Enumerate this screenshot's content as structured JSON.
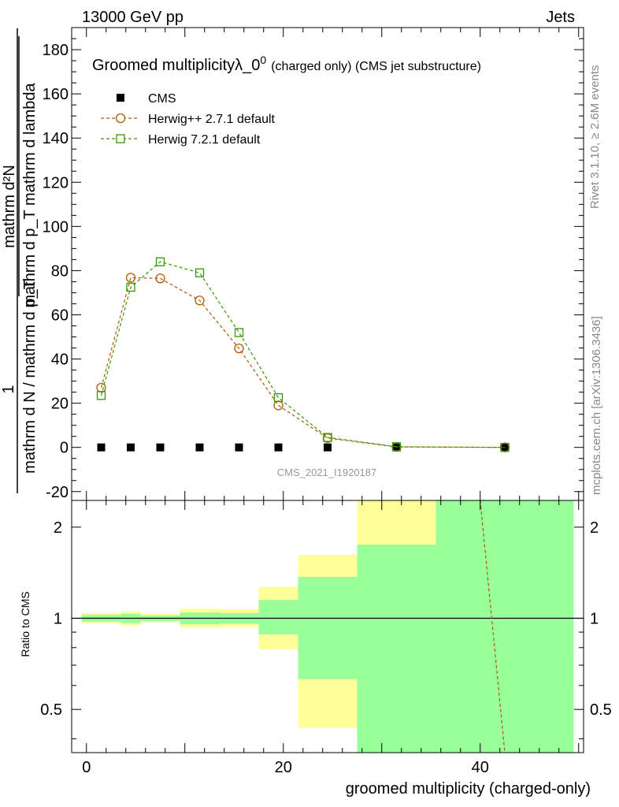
{
  "header": {
    "left": "13000 GeV pp",
    "right": "Jets"
  },
  "side_labels": {
    "rivet": "Rivet 3.1.10, ≥ 2.6M events",
    "mcplots": "mcplots.cern.ch [arXiv:1306.3436]"
  },
  "chart_data": [
    {
      "type": "line",
      "title": "Groomed multiplicityλ_0",
      "title_sup": "0",
      "title_suffix": "(charged only) (CMS jet substructure)",
      "ylabel_numerator": "mathrm d²N",
      "ylabel_upper": "mathrm d p_T mathrm d lambda",
      "ylabel_one": "1",
      "ylabel_lower": "mathrm d N / mathrm d p_T",
      "watermark": "CMS_2021_I1920187",
      "xlim": [
        -1.5,
        50.5
      ],
      "ylim": [
        -24,
        190
      ],
      "yticks": [
        -20,
        0,
        20,
        40,
        60,
        80,
        100,
        120,
        140,
        160,
        180
      ],
      "series": [
        {
          "name": "CMS",
          "marker": "filled-square",
          "color": "#000000",
          "x": [
            1.5,
            4.5,
            7.5,
            11.5,
            15.5,
            19.5,
            24.5,
            31.5,
            42.5
          ],
          "y": [
            0,
            0,
            0,
            0,
            0,
            0,
            0,
            0,
            0
          ]
        },
        {
          "name": "Herwig++ 2.7.1 default",
          "marker": "open-circle",
          "color": "#b35900",
          "x": [
            1.5,
            4.5,
            7.5,
            11.5,
            15.5,
            19.5,
            24.5,
            31.5,
            42.5
          ],
          "y": [
            27,
            76.8,
            76.5,
            66.5,
            44.8,
            19,
            4.2,
            0.2,
            0
          ]
        },
        {
          "name": "Herwig 7.2.1 default",
          "marker": "open-square",
          "color": "#339900",
          "x": [
            1.5,
            4.5,
            7.5,
            11.5,
            15.5,
            19.5,
            24.5,
            31.5,
            42.5
          ],
          "y": [
            23.5,
            72.5,
            84,
            79,
            52,
            22.5,
            4.5,
            0.3,
            0
          ]
        }
      ]
    },
    {
      "type": "area",
      "ylabel": "Ratio to CMS",
      "xlabel": "groomed multiplicity (charged-only)",
      "xlim": [
        -1.5,
        50.5
      ],
      "ylim": [
        0.36,
        2.45
      ],
      "ylog": true,
      "xticks": [
        0,
        20,
        40
      ],
      "yticks": [
        0.5,
        1,
        2
      ],
      "bands": {
        "edges": [
          -0.5,
          3.5,
          5.5,
          9.5,
          13.5,
          17.5,
          21.5,
          27.5,
          35.5,
          49.5
        ],
        "yellow": [
          [
            0.965,
            1.04
          ],
          [
            0.95,
            1.055
          ],
          [
            0.97,
            1.035
          ],
          [
            0.93,
            1.075
          ],
          [
            0.935,
            1.07
          ],
          [
            0.79,
            1.27
          ],
          [
            0.435,
            1.62
          ],
          [
            0.3,
            2.6
          ],
          [
            0.3,
            2.6
          ]
        ],
        "green": [
          [
            0.975,
            1.025
          ],
          [
            0.965,
            1.035
          ],
          [
            0.98,
            1.02
          ],
          [
            0.955,
            1.045
          ],
          [
            0.96,
            1.04
          ],
          [
            0.885,
            1.15
          ],
          [
            0.63,
            1.37
          ],
          [
            0.3,
            1.75
          ],
          [
            0.3,
            2.6
          ]
        ],
        "yellow_color": "#ffff99",
        "green_color": "#99ff99"
      },
      "reference_line": 1,
      "herwig_pp_ratio": {
        "color": "#b35900",
        "x": [
          40.0,
          42.5
        ],
        "y": [
          2.7,
          0.3
        ]
      }
    }
  ]
}
